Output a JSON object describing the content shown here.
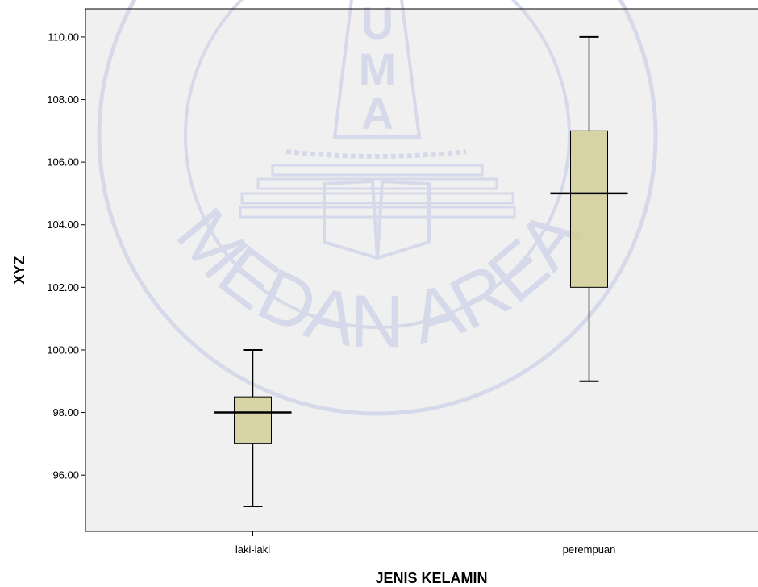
{
  "chart_data": {
    "type": "boxplot",
    "xlabel": "JENIS KELAMIN",
    "ylabel": "XYZ",
    "categories": [
      "laki-laki",
      "perempuan"
    ],
    "boxes": [
      {
        "category": "laki-laki",
        "min": 95.0,
        "q1": 97.0,
        "median": 98.0,
        "q3": 98.5,
        "max": 100.0
      },
      {
        "category": "perempuan",
        "min": 99.0,
        "q1": 102.0,
        "median": 105.0,
        "q3": 107.0,
        "max": 110.0
      }
    ],
    "yticks": [
      "96.00",
      "98.00",
      "100.00",
      "102.00",
      "104.00",
      "106.00",
      "108.00",
      "110.00"
    ],
    "ylim": [
      94.2,
      110.9
    ],
    "grid": false,
    "colors": {
      "plot_background": "#f0f0f0",
      "box_fill": "#d3ce97",
      "box_stroke": "#000000",
      "watermark": "#d6d9ea"
    },
    "watermark": {
      "top_letters": [
        "U",
        "M",
        "A"
      ],
      "arc_text": "MEDAN AREA"
    }
  }
}
